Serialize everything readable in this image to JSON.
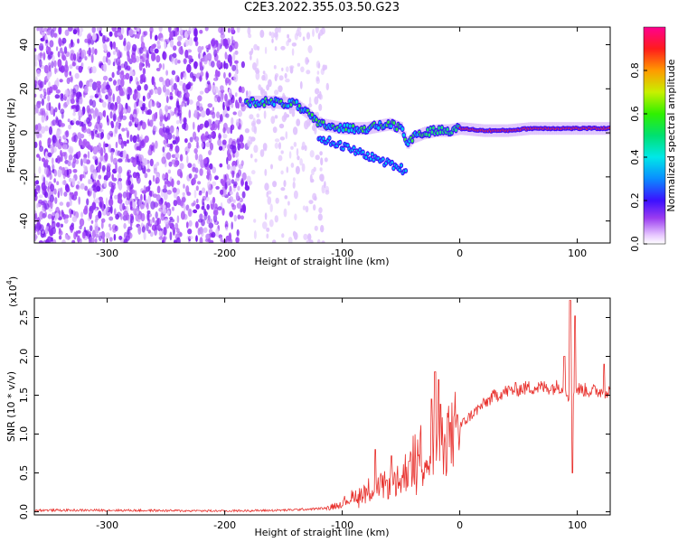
{
  "title": "C2E3.2022.355.03.50.G23",
  "chart_data": [
    {
      "type": "heatmap",
      "xlabel": "Height of straight line (km)",
      "ylabel": "Frequency (Hz)",
      "xlim": [
        -362,
        128
      ],
      "ylim": [
        -50,
        48
      ],
      "x_ticks": [
        -300,
        -200,
        -100,
        0,
        100
      ],
      "y_ticks": [
        -40,
        -20,
        0,
        20,
        40
      ],
      "grid": false,
      "colorbar": {
        "label": "Normalized spectral amplitude",
        "range": [
          0.0,
          1.0
        ],
        "ticks": [
          0.0,
          0.2,
          0.4,
          0.6,
          0.8
        ],
        "colormap": "white-purple-blue-cyan-green-yellow-red-magenta"
      },
      "signal_trace": {
        "x": [
          -180,
          -160,
          -140,
          -130,
          -120,
          -100,
          -80,
          -60,
          -50,
          -45,
          -40,
          -30,
          -20,
          -10,
          0,
          20,
          40,
          60,
          80,
          100,
          128
        ],
        "y": [
          14,
          14,
          13,
          9,
          4,
          2,
          2,
          4,
          2,
          -5,
          -2,
          0,
          1,
          1,
          2,
          1,
          1,
          2,
          2,
          2,
          2
        ]
      },
      "signal_branch": {
        "x": [
          -120,
          -100,
          -80,
          -60,
          -50,
          -45
        ],
        "y": [
          -2,
          -6,
          -10,
          -14,
          -16,
          -18
        ]
      }
    },
    {
      "type": "line",
      "xlabel": "Height of straight line (km)",
      "ylabel": "SNR (10 * v/v)",
      "y_multiplier": "(x10",
      "y_multiplier_exp": "4",
      "y_multiplier_close": ")",
      "xlim": [
        -362,
        128
      ],
      "ylim": [
        -0.04,
        2.75
      ],
      "x_ticks": [
        -300,
        -200,
        -100,
        0,
        100
      ],
      "y_ticks": [
        0.0,
        0.5,
        1.0,
        1.5,
        2.0,
        2.5
      ],
      "line_color": "#e8302c",
      "grid": false,
      "envelope": {
        "x": [
          -362,
          -300,
          -200,
          -150,
          -120,
          -110,
          -100,
          -90,
          -80,
          -70,
          -60,
          -50,
          -45,
          -40,
          -35,
          -30,
          -25,
          -20,
          -15,
          -10,
          -5,
          0,
          10,
          20,
          30,
          40,
          50,
          60,
          70,
          80,
          85,
          90,
          92,
          95,
          100,
          110,
          120,
          128
        ],
        "y": [
          0.02,
          0.02,
          0.01,
          0.02,
          0.04,
          0.06,
          0.12,
          0.2,
          0.28,
          0.32,
          0.35,
          0.4,
          0.55,
          0.65,
          0.72,
          0.78,
          0.85,
          0.9,
          0.95,
          1.0,
          1.05,
          1.1,
          1.25,
          1.38,
          1.5,
          1.55,
          1.58,
          1.6,
          1.6,
          1.6,
          1.62,
          1.6,
          1.5,
          1.55,
          1.58,
          1.56,
          1.55,
          1.55
        ]
      },
      "spikes": {
        "x": [
          -72,
          -58,
          -43,
          -24,
          -21,
          -18,
          -8,
          -2,
          89,
          94,
          96,
          98,
          123
        ],
        "y": [
          0.8,
          0.72,
          0.65,
          1.45,
          1.8,
          1.7,
          1.15,
          1.25,
          2.0,
          2.72,
          0.5,
          2.52,
          1.9
        ]
      }
    }
  ]
}
